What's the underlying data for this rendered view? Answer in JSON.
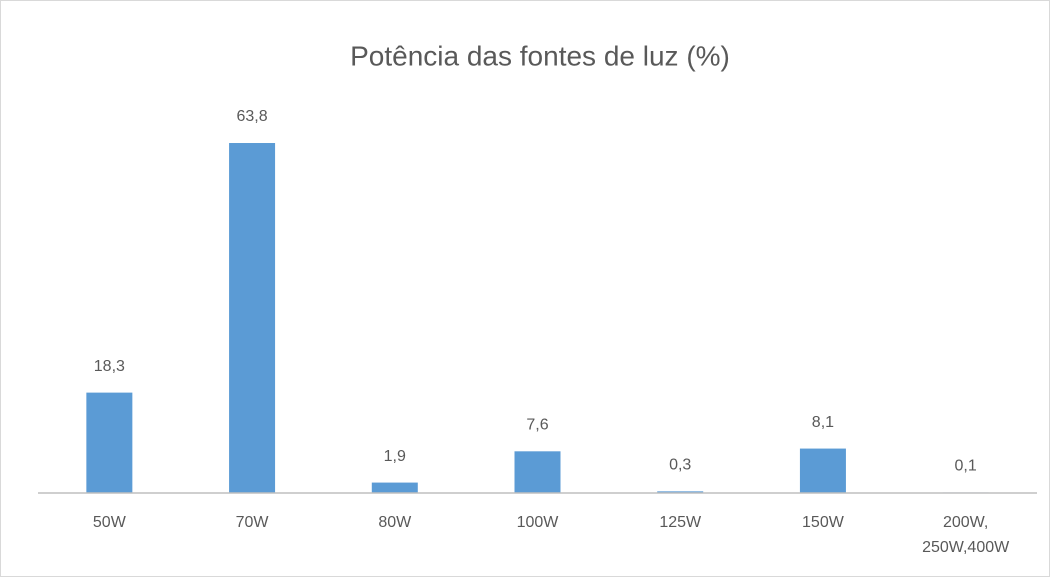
{
  "chart_data": {
    "type": "bar",
    "title": "Potência das fontes de luz (%)",
    "categories": [
      "50W",
      "70W",
      "80W",
      "100W",
      "125W",
      "150W",
      "200W, 250W,400W"
    ],
    "values": [
      18.3,
      63.8,
      1.9,
      7.6,
      0.3,
      8.1,
      0.1
    ],
    "value_labels": [
      "18,3",
      "63,8",
      "1,9",
      "7,6",
      "0,3",
      "8,1",
      "0,1"
    ],
    "color": "#5b9bd5",
    "ylim": [
      0,
      70
    ]
  }
}
